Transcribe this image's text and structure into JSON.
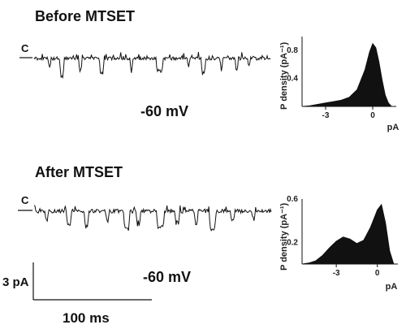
{
  "figure": {
    "panels": [
      {
        "title": "Before MTSET",
        "closed_label": "C",
        "voltage_label": "-60 mV",
        "trace": {
          "closed_level_pa": 0,
          "noise_pa": 0.25,
          "events": [
            {
              "t": 18,
              "d": 3,
              "a": -1.4
            },
            {
              "t": 32,
              "d": 5,
              "a": -2.7
            },
            {
              "t": 55,
              "d": 4,
              "a": -1.8
            },
            {
              "t": 80,
              "d": 6,
              "a": -2.2
            },
            {
              "t": 118,
              "d": 3,
              "a": -2.1
            },
            {
              "t": 150,
              "d": 8,
              "a": -2.0
            },
            {
              "t": 188,
              "d": 3,
              "a": -1.3
            },
            {
              "t": 205,
              "d": 5,
              "a": -2.3
            },
            {
              "t": 228,
              "d": 3,
              "a": -1.7
            },
            {
              "t": 246,
              "d": 4,
              "a": -1.9
            },
            {
              "t": 262,
              "d": 3,
              "a": -1.2
            }
          ]
        },
        "histogram": {
          "ylabel": "P density (pA⁻¹)",
          "xlabel": "pA",
          "x_ticks": [
            "-3",
            "0"
          ],
          "y_ticks": [
            "0.4",
            "0.8"
          ],
          "xlim": [
            -4.5,
            1.5
          ],
          "ylim": [
            0,
            1.0
          ]
        }
      },
      {
        "title": "After MTSET",
        "closed_label": "C",
        "voltage_label": "-60 mV",
        "trace": {
          "closed_level_pa": 0,
          "noise_pa": 0.3,
          "events": [
            {
              "t": 14,
              "d": 4,
              "a": -1.3
            },
            {
              "t": 40,
              "d": 6,
              "a": -2.0
            },
            {
              "t": 62,
              "d": 5,
              "a": -2.4
            },
            {
              "t": 88,
              "d": 4,
              "a": -1.6
            },
            {
              "t": 110,
              "d": 7,
              "a": -2.8
            },
            {
              "t": 125,
              "d": 5,
              "a": -2.3
            },
            {
              "t": 150,
              "d": 9,
              "a": -2.5
            },
            {
              "t": 172,
              "d": 6,
              "a": -1.8
            },
            {
              "t": 196,
              "d": 4,
              "a": -2.1
            },
            {
              "t": 214,
              "d": 8,
              "a": -2.7
            },
            {
              "t": 240,
              "d": 5,
              "a": -1.6
            },
            {
              "t": 266,
              "d": 4,
              "a": -1.4
            }
          ]
        },
        "histogram": {
          "ylabel": "P density (pA⁻¹)",
          "xlabel": "pA",
          "x_ticks": [
            "-3",
            "0"
          ],
          "y_ticks": [
            "0.2",
            "0.6"
          ],
          "xlim": [
            -5.5,
            1.5
          ],
          "ylim": [
            0,
            0.6
          ]
        }
      }
    ],
    "scale_bar": {
      "y_label": "3 pA",
      "x_label": "100 ms"
    }
  },
  "chart_data": [
    {
      "type": "line",
      "title": "Before MTSET",
      "annotations": [
        "C",
        "-60 mV"
      ],
      "xlabel": "",
      "ylabel": ""
    },
    {
      "type": "area",
      "ylabel": "P density (pA⁻¹)",
      "xlabel": "pA",
      "x": [
        -4.5,
        -4.0,
        -3.5,
        -3.0,
        -2.5,
        -2.0,
        -1.5,
        -1.0,
        -0.5,
        -0.2,
        0.0,
        0.2,
        0.4,
        0.6,
        0.8,
        1.0,
        1.2
      ],
      "y": [
        0.0,
        0.01,
        0.03,
        0.05,
        0.07,
        0.09,
        0.13,
        0.24,
        0.52,
        0.78,
        0.9,
        0.84,
        0.64,
        0.38,
        0.16,
        0.05,
        0.0
      ],
      "x_ticks": [
        -3,
        0
      ],
      "y_ticks": [
        0.4,
        0.8
      ],
      "xlim": [
        -4.5,
        1.5
      ],
      "ylim": [
        0,
        1.0
      ]
    },
    {
      "type": "line",
      "title": "After MTSET",
      "annotations": [
        "C",
        "-60 mV"
      ],
      "xlabel": "",
      "ylabel": ""
    },
    {
      "type": "area",
      "ylabel": "P density (pA⁻¹)",
      "xlabel": "pA",
      "x": [
        -5.5,
        -5.0,
        -4.5,
        -4.0,
        -3.5,
        -3.0,
        -2.5,
        -2.0,
        -1.5,
        -1.0,
        -0.5,
        0.0,
        0.3,
        0.6,
        0.9,
        1.2
      ],
      "y": [
        0.0,
        0.01,
        0.03,
        0.08,
        0.15,
        0.21,
        0.25,
        0.23,
        0.19,
        0.22,
        0.34,
        0.5,
        0.55,
        0.38,
        0.12,
        0.0
      ],
      "x_ticks": [
        -3,
        0
      ],
      "y_ticks": [
        0.2,
        0.6
      ],
      "xlim": [
        -5.5,
        1.5
      ],
      "ylim": [
        0,
        0.6
      ]
    }
  ]
}
